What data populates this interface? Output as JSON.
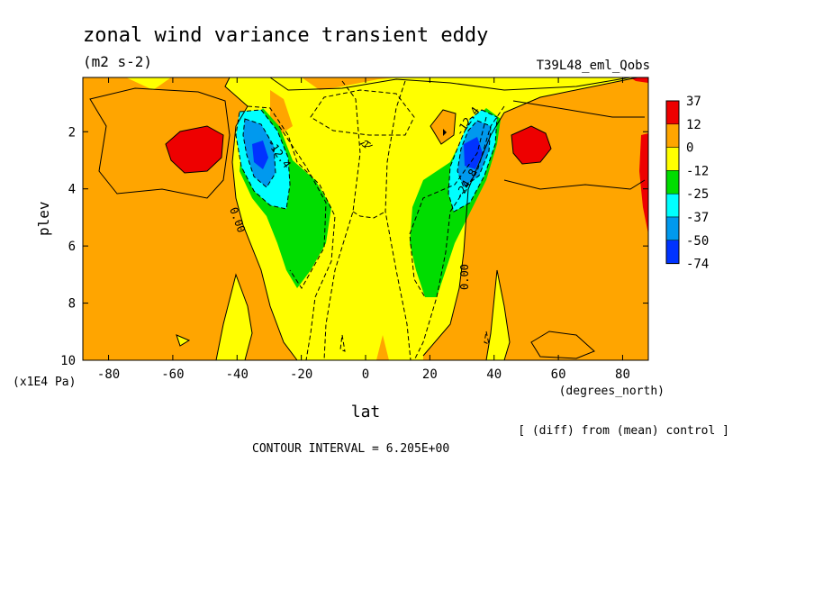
{
  "chart_data": {
    "type": "heatmap",
    "title": "zonal wind variance transient eddy",
    "units": "(m2 s-2)",
    "run_label": "T39L48_eml_Qobs",
    "xlabel": "lat",
    "x_units": "(degrees_north)",
    "ylabel": "plev",
    "y_units": "(x1E4 Pa)",
    "x_ticks": [
      -80,
      -60,
      -40,
      -20,
      0,
      20,
      40,
      60,
      80
    ],
    "y_ticks": [
      2,
      4,
      6,
      8,
      10
    ],
    "xlim": [
      -88,
      88
    ],
    "ylim": [
      10,
      0.1
    ],
    "colorbar": {
      "labels": [
        "37",
        "12",
        "0",
        "-12",
        "-25",
        "-37",
        "-50",
        "-74"
      ],
      "colors": [
        "#ee0000",
        "#ffa500",
        "#ffff00",
        "#00dd00",
        "#00ffff",
        "#0099ee",
        "#0033ff"
      ]
    },
    "contour_labels": [
      "0.00",
      "-12.4",
      "-24.8",
      "0.00",
      "-12.4",
      "-24.8",
      "-2"
    ],
    "note": "[ (diff) from (mean) control ]",
    "contour_interval": "CONTOUR INTERVAL = 6.205E+00",
    "regions": {
      "background": "#ffa500",
      "fill_colors": {
        "yellow": "#ffff00",
        "orange": "#ffa500",
        "red": "#ee0000",
        "green": "#00dd00",
        "cyan": "#00ffff",
        "mid_blue": "#0099ee",
        "blue": "#0033ff"
      }
    }
  }
}
